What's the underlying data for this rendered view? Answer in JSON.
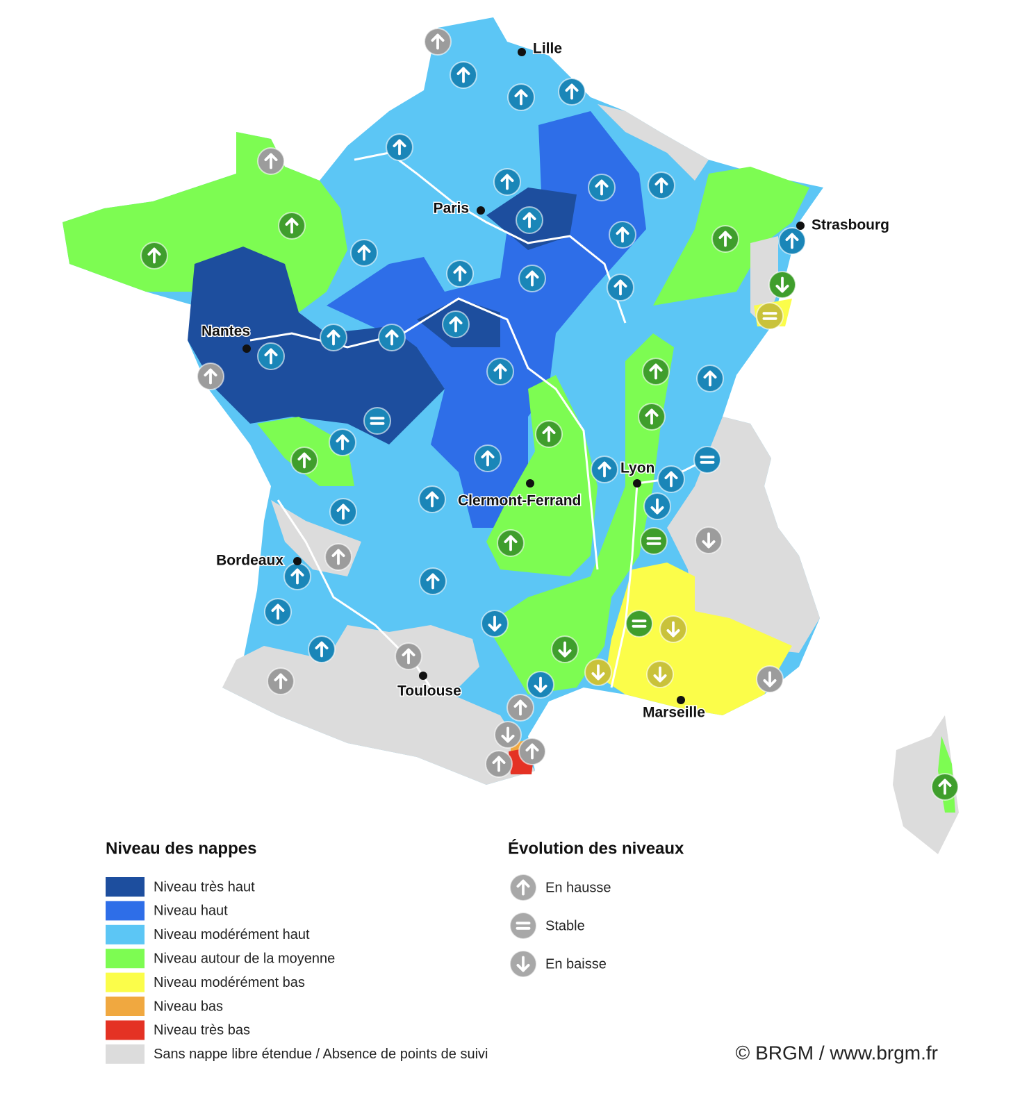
{
  "cities": [
    "Lille",
    "Paris",
    "Strasbourg",
    "Nantes",
    "Clermont-Ferrand",
    "Lyon",
    "Bordeaux",
    "Toulouse",
    "Marseille"
  ],
  "legend_levels": {
    "title": "Niveau des nappes",
    "items": [
      {
        "label": "Niveau très haut",
        "color": "#1d4e9e"
      },
      {
        "label": "Niveau haut",
        "color": "#2e6ee8"
      },
      {
        "label": "Niveau modérément haut",
        "color": "#5cc6f5"
      },
      {
        "label": "Niveau autour de la moyenne",
        "color": "#7dfc52"
      },
      {
        "label": "Niveau modérément bas",
        "color": "#fbfd4a"
      },
      {
        "label": "Niveau bas",
        "color": "#f0a840"
      },
      {
        "label": "Niveau très bas",
        "color": "#e43224"
      },
      {
        "label": "Sans nappe libre étendue / Absence de points de suivi",
        "color": "#dcdcdc"
      }
    ]
  },
  "legend_trend": {
    "title": "Évolution des niveaux",
    "items": [
      "En hausse",
      "Stable",
      "En baisse"
    ]
  },
  "credit": "© BRGM / www.brgm.fr"
}
